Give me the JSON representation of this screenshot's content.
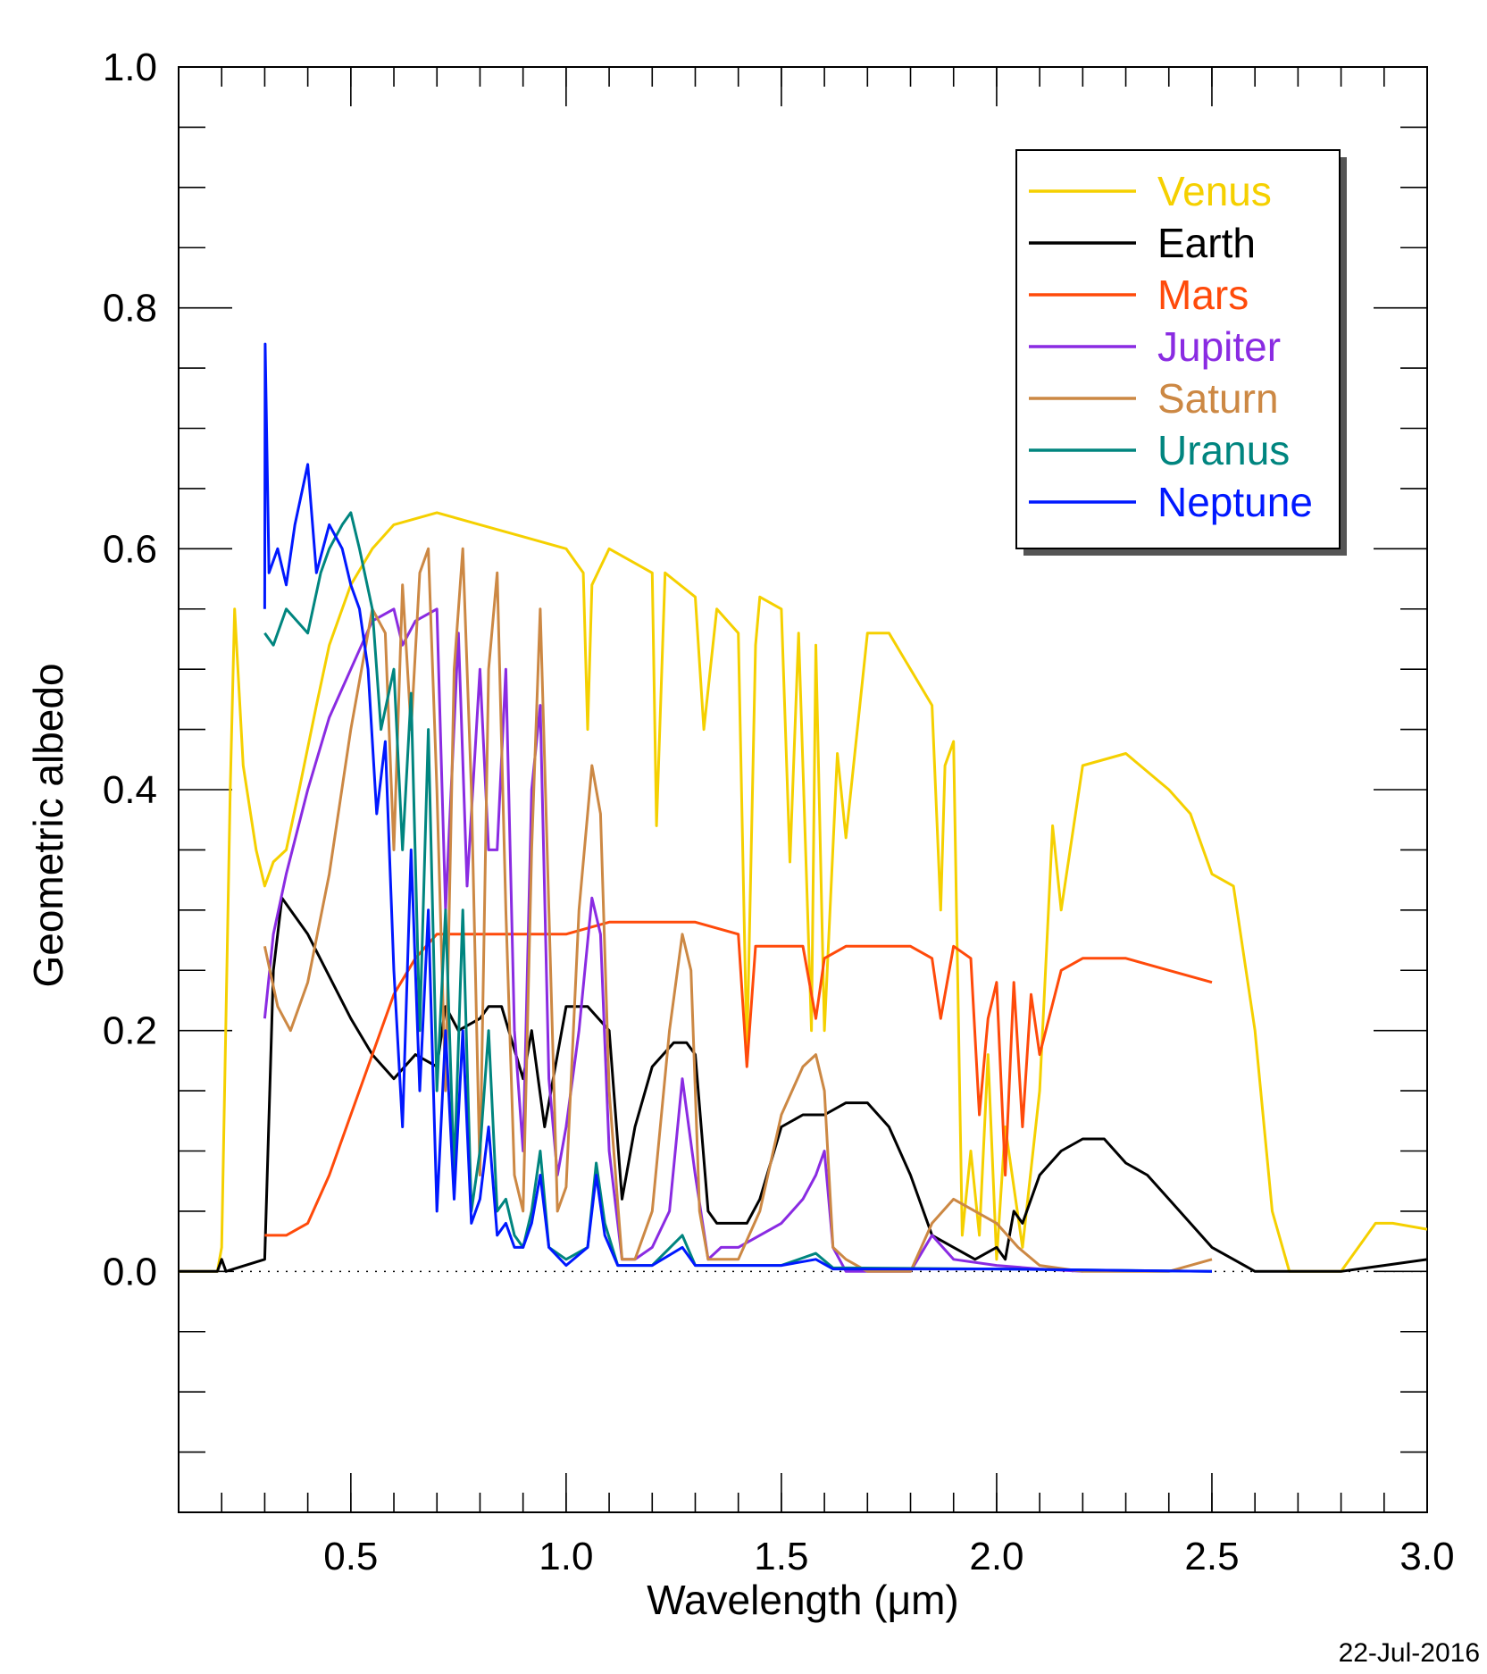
{
  "chart_data": {
    "type": "line",
    "xlabel": "Wavelength (μm)",
    "ylabel": "Geometric albedo",
    "xlim": [
      0.1,
      3.0
    ],
    "ylim": [
      -0.2,
      1.0
    ],
    "xticks": [
      0.5,
      1.0,
      1.5,
      2.0,
      2.5,
      3.0
    ],
    "xtick_labels": [
      "0.5",
      "1.0",
      "1.5",
      "2.0",
      "2.5",
      "3.0"
    ],
    "yticks": [
      0.0,
      0.2,
      0.4,
      0.6,
      0.8,
      1.0
    ],
    "ytick_labels": [
      "0.0",
      "0.2",
      "0.4",
      "0.6",
      "0.8",
      "1.0"
    ],
    "legend_position": "top-right",
    "zero_line": "dotted",
    "series": [
      {
        "name": "Venus",
        "color": "#f5d000",
        "x": [
          0.1,
          0.19,
          0.2,
          0.22,
          0.23,
          0.25,
          0.28,
          0.3,
          0.32,
          0.35,
          0.38,
          0.42,
          0.45,
          0.5,
          0.55,
          0.6,
          0.7,
          0.8,
          0.9,
          1.0,
          1.04,
          1.05,
          1.06,
          1.1,
          1.2,
          1.21,
          1.23,
          1.3,
          1.32,
          1.35,
          1.4,
          1.42,
          1.44,
          1.45,
          1.5,
          1.52,
          1.54,
          1.57,
          1.58,
          1.6,
          1.63,
          1.65,
          1.7,
          1.75,
          1.8,
          1.85,
          1.87,
          1.88,
          1.9,
          1.92,
          1.94,
          1.96,
          1.98,
          2.0,
          2.02,
          2.06,
          2.1,
          2.13,
          2.15,
          2.2,
          2.3,
          2.4,
          2.45,
          2.5,
          2.55,
          2.6,
          2.64,
          2.68,
          2.72,
          2.8,
          2.88,
          2.92,
          3.0
        ],
        "y": [
          0.0,
          0.0,
          0.02,
          0.4,
          0.55,
          0.42,
          0.35,
          0.32,
          0.34,
          0.35,
          0.4,
          0.47,
          0.52,
          0.57,
          0.6,
          0.62,
          0.63,
          0.62,
          0.61,
          0.6,
          0.58,
          0.45,
          0.57,
          0.6,
          0.58,
          0.37,
          0.58,
          0.56,
          0.45,
          0.55,
          0.53,
          0.18,
          0.52,
          0.56,
          0.55,
          0.34,
          0.53,
          0.2,
          0.52,
          0.2,
          0.43,
          0.36,
          0.53,
          0.53,
          0.5,
          0.47,
          0.3,
          0.42,
          0.44,
          0.03,
          0.1,
          0.03,
          0.18,
          0.01,
          0.12,
          0.02,
          0.15,
          0.37,
          0.3,
          0.42,
          0.43,
          0.4,
          0.38,
          0.33,
          0.32,
          0.2,
          0.05,
          0.0,
          0.0,
          0.0,
          0.04,
          0.04,
          0.035
        ]
      },
      {
        "name": "Earth",
        "color": "#000000",
        "x": [
          0.1,
          0.19,
          0.2,
          0.21,
          0.3,
          0.32,
          0.34,
          0.4,
          0.5,
          0.55,
          0.6,
          0.65,
          0.7,
          0.72,
          0.75,
          0.8,
          0.82,
          0.85,
          0.9,
          0.92,
          0.95,
          0.98,
          1.0,
          1.05,
          1.1,
          1.13,
          1.16,
          1.2,
          1.25,
          1.28,
          1.3,
          1.33,
          1.35,
          1.38,
          1.42,
          1.45,
          1.5,
          1.55,
          1.6,
          1.65,
          1.7,
          1.75,
          1.8,
          1.85,
          1.9,
          1.95,
          2.0,
          2.02,
          2.04,
          2.06,
          2.1,
          2.15,
          2.2,
          2.25,
          2.3,
          2.35,
          2.4,
          2.45,
          2.5,
          2.55,
          2.6,
          2.7,
          2.8,
          2.9,
          3.0
        ],
        "y": [
          0.0,
          0.0,
          0.01,
          0.0,
          0.01,
          0.25,
          0.31,
          0.28,
          0.21,
          0.18,
          0.16,
          0.18,
          0.17,
          0.22,
          0.2,
          0.21,
          0.22,
          0.22,
          0.16,
          0.2,
          0.12,
          0.18,
          0.22,
          0.22,
          0.2,
          0.06,
          0.12,
          0.17,
          0.19,
          0.19,
          0.18,
          0.05,
          0.04,
          0.04,
          0.04,
          0.06,
          0.12,
          0.13,
          0.13,
          0.14,
          0.14,
          0.12,
          0.08,
          0.03,
          0.02,
          0.01,
          0.02,
          0.01,
          0.05,
          0.04,
          0.08,
          0.1,
          0.11,
          0.11,
          0.09,
          0.08,
          0.06,
          0.04,
          0.02,
          0.01,
          0.0,
          0.0,
          0.0,
          0.005,
          0.01
        ]
      },
      {
        "name": "Mars",
        "color": "#ff4a0a",
        "x": [
          0.3,
          0.35,
          0.4,
          0.45,
          0.5,
          0.55,
          0.6,
          0.65,
          0.7,
          0.75,
          0.8,
          0.9,
          1.0,
          1.1,
          1.2,
          1.3,
          1.4,
          1.42,
          1.44,
          1.5,
          1.55,
          1.58,
          1.6,
          1.65,
          1.7,
          1.8,
          1.85,
          1.87,
          1.9,
          1.94,
          1.96,
          1.98,
          2.0,
          2.02,
          2.04,
          2.06,
          2.08,
          2.1,
          2.15,
          2.2,
          2.3,
          2.4,
          2.5
        ],
        "y": [
          0.03,
          0.03,
          0.04,
          0.08,
          0.13,
          0.18,
          0.23,
          0.26,
          0.28,
          0.28,
          0.28,
          0.28,
          0.28,
          0.29,
          0.29,
          0.29,
          0.28,
          0.17,
          0.27,
          0.27,
          0.27,
          0.21,
          0.26,
          0.27,
          0.27,
          0.27,
          0.26,
          0.21,
          0.27,
          0.26,
          0.13,
          0.21,
          0.24,
          0.08,
          0.24,
          0.12,
          0.23,
          0.18,
          0.25,
          0.26,
          0.26,
          0.25,
          0.24
        ]
      },
      {
        "name": "Jupiter",
        "color": "#8a2be2",
        "x": [
          0.3,
          0.32,
          0.35,
          0.4,
          0.45,
          0.5,
          0.55,
          0.6,
          0.62,
          0.65,
          0.7,
          0.72,
          0.75,
          0.77,
          0.8,
          0.82,
          0.84,
          0.86,
          0.88,
          0.9,
          0.92,
          0.94,
          0.96,
          0.98,
          1.0,
          1.03,
          1.06,
          1.08,
          1.1,
          1.13,
          1.16,
          1.2,
          1.24,
          1.27,
          1.3,
          1.33,
          1.36,
          1.4,
          1.45,
          1.5,
          1.55,
          1.58,
          1.6,
          1.62,
          1.65,
          1.7,
          1.8,
          1.85,
          1.9,
          2.0,
          2.1,
          2.2
        ],
        "y": [
          0.21,
          0.28,
          0.33,
          0.4,
          0.46,
          0.5,
          0.54,
          0.55,
          0.52,
          0.54,
          0.55,
          0.3,
          0.53,
          0.32,
          0.5,
          0.35,
          0.35,
          0.5,
          0.2,
          0.1,
          0.4,
          0.47,
          0.16,
          0.08,
          0.12,
          0.2,
          0.31,
          0.28,
          0.1,
          0.01,
          0.01,
          0.02,
          0.05,
          0.16,
          0.08,
          0.01,
          0.02,
          0.02,
          0.03,
          0.04,
          0.06,
          0.08,
          0.1,
          0.02,
          0.0,
          0.0,
          0.0,
          0.03,
          0.01,
          0.005,
          0.002,
          0.0
        ]
      },
      {
        "name": "Saturn",
        "color": "#cc8844",
        "x": [
          0.3,
          0.33,
          0.36,
          0.4,
          0.45,
          0.5,
          0.55,
          0.58,
          0.6,
          0.62,
          0.64,
          0.66,
          0.68,
          0.7,
          0.72,
          0.74,
          0.76,
          0.78,
          0.8,
          0.82,
          0.84,
          0.86,
          0.88,
          0.9,
          0.92,
          0.94,
          0.96,
          0.98,
          1.0,
          1.03,
          1.06,
          1.08,
          1.1,
          1.13,
          1.16,
          1.2,
          1.24,
          1.27,
          1.29,
          1.31,
          1.33,
          1.36,
          1.4,
          1.45,
          1.5,
          1.55,
          1.58,
          1.6,
          1.62,
          1.65,
          1.7,
          1.8,
          1.85,
          1.9,
          1.95,
          2.0,
          2.05,
          2.1,
          2.2,
          2.4,
          2.5
        ],
        "y": [
          0.27,
          0.22,
          0.2,
          0.24,
          0.33,
          0.45,
          0.55,
          0.53,
          0.35,
          0.57,
          0.45,
          0.58,
          0.6,
          0.4,
          0.15,
          0.5,
          0.6,
          0.4,
          0.08,
          0.5,
          0.58,
          0.3,
          0.08,
          0.05,
          0.35,
          0.55,
          0.3,
          0.05,
          0.07,
          0.3,
          0.42,
          0.38,
          0.15,
          0.01,
          0.01,
          0.05,
          0.2,
          0.28,
          0.25,
          0.05,
          0.01,
          0.01,
          0.01,
          0.05,
          0.13,
          0.17,
          0.18,
          0.15,
          0.02,
          0.01,
          0.0,
          0.0,
          0.04,
          0.06,
          0.05,
          0.04,
          0.02,
          0.005,
          0.0,
          0.0,
          0.01
        ]
      },
      {
        "name": "Uranus",
        "color": "#00857f",
        "x": [
          0.3,
          0.32,
          0.35,
          0.4,
          0.43,
          0.45,
          0.48,
          0.5,
          0.52,
          0.55,
          0.57,
          0.6,
          0.62,
          0.64,
          0.66,
          0.68,
          0.7,
          0.72,
          0.74,
          0.76,
          0.78,
          0.8,
          0.82,
          0.84,
          0.86,
          0.88,
          0.9,
          0.92,
          0.94,
          0.96,
          1.0,
          1.05,
          1.07,
          1.09,
          1.12,
          1.2,
          1.27,
          1.3,
          1.4,
          1.5,
          1.58,
          1.62,
          2.0,
          2.5
        ],
        "y": [
          0.53,
          0.52,
          0.55,
          0.53,
          0.58,
          0.6,
          0.62,
          0.63,
          0.6,
          0.55,
          0.45,
          0.5,
          0.35,
          0.48,
          0.2,
          0.45,
          0.15,
          0.3,
          0.08,
          0.3,
          0.05,
          0.1,
          0.2,
          0.05,
          0.06,
          0.03,
          0.02,
          0.05,
          0.1,
          0.02,
          0.01,
          0.02,
          0.09,
          0.04,
          0.005,
          0.005,
          0.03,
          0.005,
          0.005,
          0.005,
          0.015,
          0.003,
          0.002,
          0.0
        ]
      },
      {
        "name": "Neptune",
        "color": "#0018ff",
        "x": [
          0.3,
          0.301,
          0.31,
          0.33,
          0.35,
          0.37,
          0.4,
          0.42,
          0.45,
          0.48,
          0.5,
          0.52,
          0.54,
          0.56,
          0.58,
          0.6,
          0.62,
          0.64,
          0.66,
          0.68,
          0.7,
          0.72,
          0.74,
          0.76,
          0.78,
          0.8,
          0.82,
          0.84,
          0.86,
          0.88,
          0.9,
          0.92,
          0.94,
          0.96,
          1.0,
          1.05,
          1.07,
          1.09,
          1.12,
          1.2,
          1.27,
          1.3,
          1.4,
          1.5,
          1.58,
          1.62,
          2.0,
          2.5
        ],
        "y": [
          0.55,
          0.77,
          0.58,
          0.6,
          0.57,
          0.62,
          0.67,
          0.58,
          0.62,
          0.6,
          0.57,
          0.55,
          0.5,
          0.38,
          0.44,
          0.25,
          0.12,
          0.35,
          0.15,
          0.3,
          0.05,
          0.2,
          0.06,
          0.2,
          0.04,
          0.06,
          0.12,
          0.03,
          0.04,
          0.02,
          0.02,
          0.04,
          0.08,
          0.02,
          0.005,
          0.02,
          0.08,
          0.03,
          0.005,
          0.005,
          0.02,
          0.005,
          0.005,
          0.005,
          0.01,
          0.002,
          0.002,
          0.0
        ]
      }
    ]
  },
  "date_stamp": "22-Jul-2016"
}
